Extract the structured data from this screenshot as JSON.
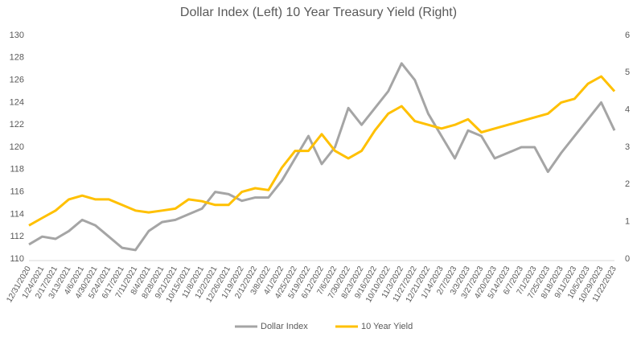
{
  "chart_data": {
    "type": "line",
    "title": "Dollar Index (Left) 10 Year Treasury Yield (Right)",
    "categories": [
      "12/31/2020",
      "1/24/2021",
      "2/17/2021",
      "3/13/2021",
      "4/6/2021",
      "4/30/2021",
      "5/24/2021",
      "6/17/2021",
      "7/11/2021",
      "8/4/2021",
      "8/28/2021",
      "9/21/2021",
      "10/15/2021",
      "11/8/2021",
      "12/2/2021",
      "12/26/2021",
      "1/19/2022",
      "2/12/2022",
      "3/8/2022",
      "4/1/2022",
      "4/25/2022",
      "5/19/2022",
      "6/12/2022",
      "7/6/2022",
      "7/30/2022",
      "8/23/2022",
      "9/16/2022",
      "10/10/2022",
      "11/3/2022",
      "11/27/2022",
      "12/21/2022",
      "1/14/2023",
      "2/7/2023",
      "3/3/2023",
      "3/27/2023",
      "4/20/2023",
      "5/14/2023",
      "6/7/2023",
      "7/1/2023",
      "7/25/2023",
      "8/18/2023",
      "9/11/2023",
      "10/5/2023",
      "10/29/2023",
      "11/22/2023"
    ],
    "series": [
      {
        "name": "Dollar Index",
        "color": "#a5a5a5",
        "values": [
          111.3,
          112,
          111.8,
          112.5,
          113.5,
          113,
          112,
          111,
          110.8,
          112.5,
          113.3,
          113.5,
          114,
          114.5,
          116,
          115.8,
          115.2,
          115.5,
          115.5,
          117,
          119,
          121,
          118.5,
          120,
          123.5,
          122,
          123.5,
          125,
          127.5,
          126,
          123,
          121,
          119,
          121.5,
          121,
          119,
          119.5,
          120,
          120,
          117.8,
          119.5,
          121,
          122.5,
          124,
          121.5
        ]
      },
      {
        "name": "10 Year Yield",
        "color": "#ffc000",
        "axis": "y2",
        "values": [
          0.9,
          1.1,
          1.3,
          1.6,
          1.7,
          1.6,
          1.6,
          1.45,
          1.3,
          1.25,
          1.3,
          1.35,
          1.6,
          1.55,
          1.45,
          1.45,
          1.8,
          1.9,
          1.85,
          2.45,
          2.9,
          2.9,
          3.35,
          2.9,
          2.7,
          2.9,
          3.45,
          3.9,
          4.1,
          3.7,
          3.6,
          3.5,
          3.6,
          3.75,
          3.4,
          3.5,
          3.6,
          3.7,
          3.8,
          3.9,
          4.2,
          4.3,
          4.7,
          4.9,
          4.5
        ]
      }
    ],
    "ylim": [
      110,
      130
    ],
    "yticks": [
      110,
      112,
      114,
      116,
      118,
      120,
      122,
      124,
      126,
      128,
      130
    ],
    "y2lim": [
      0,
      6
    ],
    "y2ticks": [
      0,
      1,
      2,
      3,
      4,
      5,
      6
    ],
    "legend": "bottom"
  }
}
